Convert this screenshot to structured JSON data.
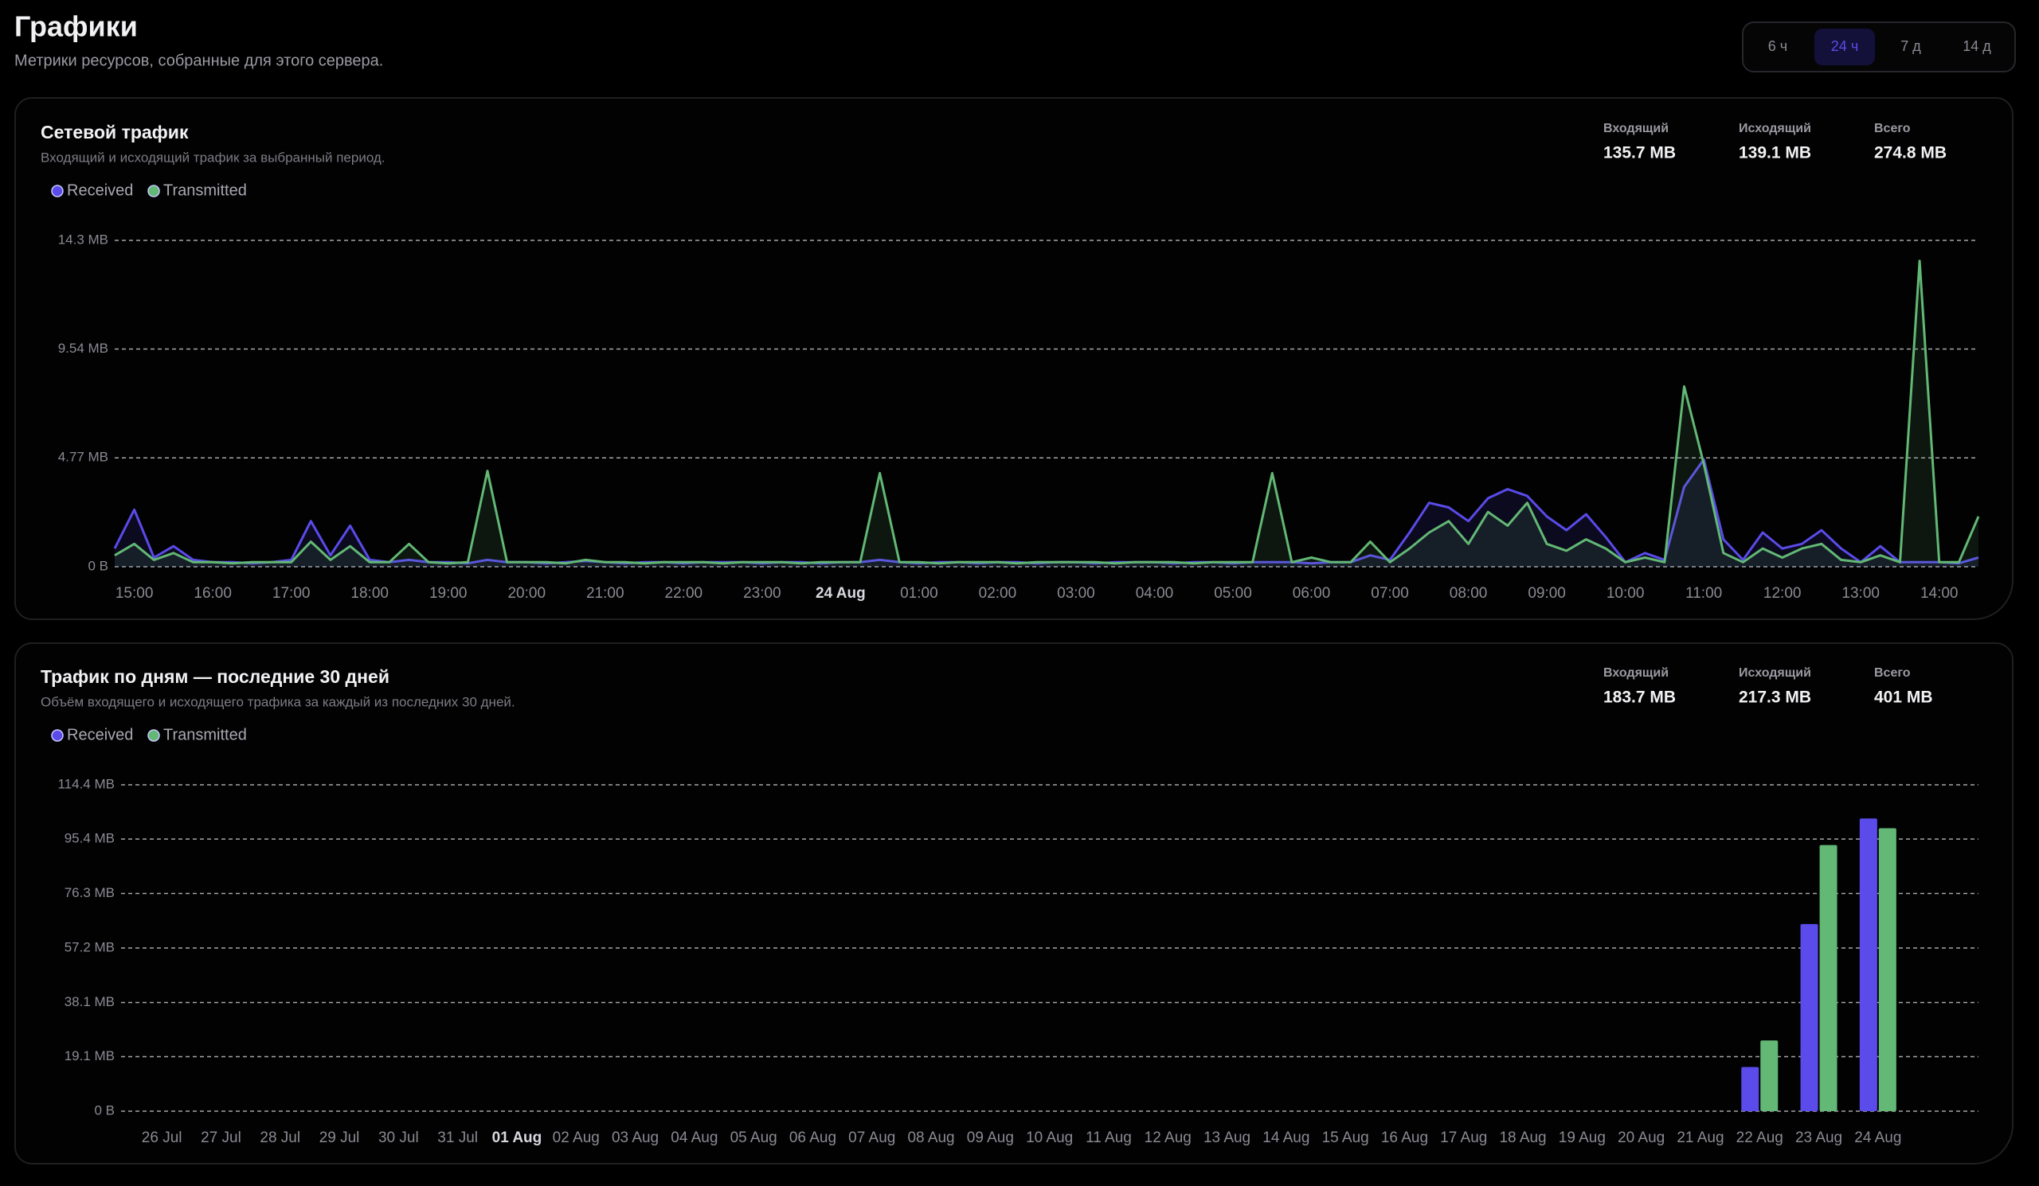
{
  "header": {
    "title": "Графики",
    "subtitle": "Метрики ресурсов, собранные для этого сервера."
  },
  "range_options": [
    "6 ч",
    "24 ч",
    "7 д",
    "14 д"
  ],
  "selected_range_index": 1,
  "chart_data": [
    {
      "type": "line",
      "title": "Сетевой трафик",
      "subtitle": "Входящий и исходящий трафик за выбранный период.",
      "stats": [
        {
          "label": "Входящий",
          "value": "135.7 MB"
        },
        {
          "label": "Исходящий",
          "value": "139.1 MB"
        },
        {
          "label": "Всего",
          "value": "274.8 MB"
        }
      ],
      "categories": [
        null,
        "15:00",
        null,
        null,
        null,
        "16:00",
        null,
        null,
        null,
        "17:00",
        null,
        null,
        null,
        "18:00",
        null,
        null,
        null,
        "19:00",
        null,
        null,
        null,
        "20:00",
        null,
        null,
        null,
        "21:00",
        null,
        null,
        null,
        "22:00",
        null,
        null,
        null,
        "23:00",
        null,
        null,
        null,
        "24 Aug",
        null,
        null,
        null,
        "01:00",
        null,
        null,
        null,
        "02:00",
        null,
        null,
        null,
        "03:00",
        null,
        null,
        null,
        "04:00",
        null,
        null,
        null,
        "05:00",
        null,
        null,
        null,
        "06:00",
        null,
        null,
        null,
        "07:00",
        null,
        null,
        null,
        "08:00",
        null,
        null,
        null,
        "09:00",
        null,
        null,
        null,
        "10:00",
        null,
        null,
        null,
        "11:00",
        null,
        null,
        null,
        "12:00",
        null,
        null,
        null,
        "13:00",
        null,
        null,
        null,
        "14:00",
        null,
        null
      ],
      "series": [
        {
          "name": "Received",
          "color": "#5a4bea",
          "values": [
            0.8,
            2.5,
            0.4,
            0.9,
            0.3,
            0.2,
            0.2,
            0.15,
            0.2,
            0.3,
            2.0,
            0.5,
            1.8,
            0.3,
            0.2,
            0.3,
            0.2,
            0.2,
            0.15,
            0.3,
            0.2,
            0.2,
            0.15,
            0.2,
            0.25,
            0.2,
            0.15,
            0.2,
            0.2,
            0.15,
            0.2,
            0.2,
            0.2,
            0.15,
            0.2,
            0.2,
            0.15,
            0.2,
            0.2,
            0.3,
            0.2,
            0.15,
            0.2,
            0.2,
            0.15,
            0.2,
            0.2,
            0.15,
            0.2,
            0.2,
            0.15,
            0.2,
            0.2,
            0.2,
            0.15,
            0.2,
            0.2,
            0.15,
            0.2,
            0.2,
            0.2,
            0.15,
            0.2,
            0.2,
            0.5,
            0.3,
            1.5,
            2.8,
            2.6,
            2.0,
            3.0,
            3.4,
            3.1,
            2.2,
            1.6,
            2.3,
            1.3,
            0.2,
            0.6,
            0.3,
            3.5,
            4.7,
            1.2,
            0.3,
            1.5,
            0.8,
            1.0,
            1.6,
            0.8,
            0.2,
            0.9,
            0.2,
            0.2,
            0.2,
            0.15,
            0.4
          ]
        },
        {
          "name": "Transmitted",
          "color": "#62b874",
          "values": [
            0.5,
            1.0,
            0.3,
            0.6,
            0.2,
            0.2,
            0.15,
            0.2,
            0.2,
            0.2,
            1.1,
            0.3,
            0.9,
            0.2,
            0.2,
            1.0,
            0.2,
            0.15,
            0.2,
            4.2,
            0.2,
            0.2,
            0.2,
            0.15,
            0.3,
            0.2,
            0.2,
            0.15,
            0.2,
            0.2,
            0.2,
            0.15,
            0.2,
            0.2,
            0.2,
            0.15,
            0.2,
            0.2,
            0.2,
            4.1,
            0.2,
            0.2,
            0.15,
            0.2,
            0.2,
            0.2,
            0.15,
            0.2,
            0.2,
            0.2,
            0.2,
            0.15,
            0.2,
            0.2,
            0.2,
            0.15,
            0.2,
            0.2,
            0.2,
            4.1,
            0.2,
            0.4,
            0.2,
            0.2,
            1.1,
            0.2,
            0.8,
            1.5,
            2.0,
            1.0,
            2.4,
            1.8,
            2.8,
            1.0,
            0.7,
            1.2,
            0.8,
            0.2,
            0.4,
            0.2,
            7.9,
            4.5,
            0.6,
            0.2,
            0.8,
            0.4,
            0.8,
            1.0,
            0.3,
            0.2,
            0.5,
            0.2,
            13.4,
            0.2,
            0.2,
            2.2
          ]
        }
      ],
      "ylim": [
        0,
        14.3
      ],
      "yticks": [
        {
          "value": 0,
          "label": "0 B"
        },
        {
          "value": 4.77,
          "label": "4.77 MB"
        },
        {
          "value": 9.54,
          "label": "9.54 MB"
        },
        {
          "value": 14.3,
          "label": "14.3 MB"
        }
      ],
      "grid": true
    },
    {
      "type": "bar",
      "title": "Трафик по дням — последние 30 дней",
      "subtitle": "Объём входящего и исходящего трафика за каждый из последних 30 дней.",
      "stats": [
        {
          "label": "Входящий",
          "value": "183.7 MB"
        },
        {
          "label": "Исходящий",
          "value": "217.3 MB"
        },
        {
          "label": "Всего",
          "value": "401 MB"
        }
      ],
      "categories": [
        "26 Jul",
        "27 Jul",
        "28 Jul",
        "29 Jul",
        "30 Jul",
        "31 Jul",
        "01 Aug",
        "02 Aug",
        "03 Aug",
        "04 Aug",
        "05 Aug",
        "06 Aug",
        "07 Aug",
        "08 Aug",
        "09 Aug",
        "10 Aug",
        "11 Aug",
        "12 Aug",
        "13 Aug",
        "14 Aug",
        "15 Aug",
        "16 Aug",
        "17 Aug",
        "18 Aug",
        "19 Aug",
        "20 Aug",
        "21 Aug",
        "22 Aug",
        "23 Aug",
        "24 Aug"
      ],
      "series": [
        {
          "name": "Received",
          "color": "#5a4bea",
          "values": [
            0,
            0,
            0,
            0,
            0,
            0,
            0,
            0,
            0,
            0,
            0,
            0,
            0,
            0,
            0,
            0,
            0,
            0,
            0,
            0,
            0,
            0,
            0,
            0,
            0,
            0,
            0,
            15.5,
            65.6,
            102.6
          ]
        },
        {
          "name": "Transmitted",
          "color": "#62b874",
          "values": [
            0,
            0,
            0,
            0,
            0,
            0,
            0,
            0,
            0,
            0,
            0,
            0,
            0,
            0,
            0,
            0,
            0,
            0,
            0,
            0,
            0,
            0,
            0,
            0,
            0,
            0,
            0,
            24.8,
            93.3,
            99.2
          ]
        }
      ],
      "ylim": [
        0,
        114.4
      ],
      "yticks": [
        {
          "value": 0,
          "label": "0 B"
        },
        {
          "value": 19.1,
          "label": "19.1 MB"
        },
        {
          "value": 38.1,
          "label": "38.1 MB"
        },
        {
          "value": 57.2,
          "label": "57.2 MB"
        },
        {
          "value": 76.3,
          "label": "76.3 MB"
        },
        {
          "value": 95.4,
          "label": "95.4 MB"
        },
        {
          "value": 114.4,
          "label": "114.4 MB"
        }
      ],
      "grid": true
    }
  ]
}
